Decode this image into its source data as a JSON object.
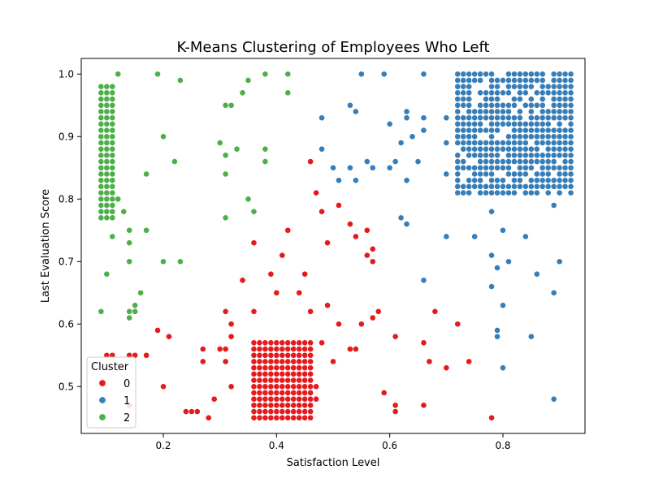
{
  "chart_data": {
    "type": "scatter",
    "title": "K-Means Clustering of Employees Who Left",
    "xlabel": "Satisfaction Level",
    "ylabel": "Last Evaluation Score",
    "xlim": [
      0.055,
      0.945
    ],
    "ylim": [
      0.425,
      1.025
    ],
    "xticks": [
      0.2,
      0.4,
      0.6,
      0.8
    ],
    "xtick_labels": [
      "0.2",
      "0.4",
      "0.6",
      "0.8"
    ],
    "yticks": [
      0.5,
      0.6,
      0.7,
      0.8,
      0.9,
      1.0
    ],
    "ytick_labels": [
      "0.5",
      "0.6",
      "0.7",
      "0.8",
      "0.9",
      "1.0"
    ],
    "grid": false,
    "legend": {
      "title": "Cluster",
      "placement": "lower-left",
      "entries": [
        {
          "label": "0",
          "color": "#e41a1c"
        },
        {
          "label": "1",
          "color": "#377eb8"
        },
        {
          "label": "2",
          "color": "#4daf4a"
        }
      ]
    },
    "blocks": [
      {
        "series": "0",
        "x_range": [
          0.36,
          0.46
        ],
        "y_range": [
          0.45,
          0.57
        ],
        "x_step": 0.01,
        "y_step": 0.01
      },
      {
        "series": "2",
        "x_range": [
          0.09,
          0.11
        ],
        "y_range": [
          0.77,
          0.98
        ],
        "x_step": 0.01,
        "y_step": 0.01
      },
      {
        "series": "1",
        "x_range": [
          0.72,
          0.92
        ],
        "y_range": [
          0.81,
          1.0
        ],
        "x_step": 0.01,
        "y_step": 0.01,
        "density": 0.82
      }
    ],
    "series": [
      {
        "name": "0",
        "color": "#e41a1c",
        "points": [
          [
            0.1,
            0.55
          ],
          [
            0.11,
            0.55
          ],
          [
            0.14,
            0.55
          ],
          [
            0.15,
            0.55
          ],
          [
            0.17,
            0.55
          ],
          [
            0.14,
            0.47
          ],
          [
            0.19,
            0.59
          ],
          [
            0.21,
            0.58
          ],
          [
            0.2,
            0.5
          ],
          [
            0.24,
            0.46
          ],
          [
            0.25,
            0.46
          ],
          [
            0.26,
            0.46
          ],
          [
            0.27,
            0.56
          ],
          [
            0.27,
            0.54
          ],
          [
            0.28,
            0.45
          ],
          [
            0.29,
            0.48
          ],
          [
            0.3,
            0.56
          ],
          [
            0.31,
            0.56
          ],
          [
            0.31,
            0.54
          ],
          [
            0.31,
            0.62
          ],
          [
            0.32,
            0.6
          ],
          [
            0.32,
            0.58
          ],
          [
            0.32,
            0.5
          ],
          [
            0.34,
            0.67
          ],
          [
            0.36,
            0.73
          ],
          [
            0.36,
            0.62
          ],
          [
            0.39,
            0.68
          ],
          [
            0.4,
            0.65
          ],
          [
            0.41,
            0.71
          ],
          [
            0.42,
            0.75
          ],
          [
            0.44,
            0.65
          ],
          [
            0.45,
            0.68
          ],
          [
            0.46,
            0.62
          ],
          [
            0.46,
            0.86
          ],
          [
            0.47,
            0.81
          ],
          [
            0.48,
            0.78
          ],
          [
            0.48,
            0.57
          ],
          [
            0.49,
            0.73
          ],
          [
            0.49,
            0.63
          ],
          [
            0.5,
            0.54
          ],
          [
            0.51,
            0.79
          ],
          [
            0.51,
            0.6
          ],
          [
            0.53,
            0.76
          ],
          [
            0.53,
            0.56
          ],
          [
            0.54,
            0.74
          ],
          [
            0.54,
            0.56
          ],
          [
            0.55,
            0.6
          ],
          [
            0.56,
            0.75
          ],
          [
            0.56,
            0.71
          ],
          [
            0.57,
            0.72
          ],
          [
            0.57,
            0.7
          ],
          [
            0.57,
            0.61
          ],
          [
            0.58,
            0.62
          ],
          [
            0.59,
            0.49
          ],
          [
            0.61,
            0.58
          ],
          [
            0.61,
            0.47
          ],
          [
            0.61,
            0.46
          ],
          [
            0.66,
            0.57
          ],
          [
            0.66,
            0.47
          ],
          [
            0.67,
            0.54
          ],
          [
            0.68,
            0.62
          ],
          [
            0.7,
            0.53
          ],
          [
            0.72,
            0.6
          ],
          [
            0.74,
            0.54
          ],
          [
            0.78,
            0.45
          ],
          [
            0.47,
            0.5
          ],
          [
            0.47,
            0.48
          ]
        ]
      },
      {
        "name": "1",
        "color": "#377eb8",
        "points": [
          [
            0.48,
            0.93
          ],
          [
            0.48,
            0.88
          ],
          [
            0.5,
            0.85
          ],
          [
            0.51,
            0.83
          ],
          [
            0.53,
            0.95
          ],
          [
            0.53,
            0.85
          ],
          [
            0.54,
            0.94
          ],
          [
            0.54,
            0.83
          ],
          [
            0.55,
            1.0
          ],
          [
            0.56,
            0.86
          ],
          [
            0.57,
            0.85
          ],
          [
            0.59,
            1.0
          ],
          [
            0.6,
            0.92
          ],
          [
            0.6,
            0.85
          ],
          [
            0.61,
            0.86
          ],
          [
            0.62,
            0.89
          ],
          [
            0.62,
            0.77
          ],
          [
            0.63,
            0.94
          ],
          [
            0.63,
            0.93
          ],
          [
            0.63,
            0.83
          ],
          [
            0.63,
            0.76
          ],
          [
            0.64,
            0.9
          ],
          [
            0.65,
            0.86
          ],
          [
            0.66,
            1.0
          ],
          [
            0.66,
            0.93
          ],
          [
            0.66,
            0.91
          ],
          [
            0.66,
            0.67
          ],
          [
            0.7,
            0.93
          ],
          [
            0.7,
            0.89
          ],
          [
            0.7,
            0.84
          ],
          [
            0.7,
            0.74
          ],
          [
            0.75,
            0.74
          ],
          [
            0.78,
            0.78
          ],
          [
            0.78,
            0.71
          ],
          [
            0.78,
            0.66
          ],
          [
            0.79,
            0.69
          ],
          [
            0.79,
            0.59
          ],
          [
            0.79,
            0.58
          ],
          [
            0.8,
            0.75
          ],
          [
            0.8,
            0.63
          ],
          [
            0.8,
            0.53
          ],
          [
            0.81,
            0.7
          ],
          [
            0.84,
            0.74
          ],
          [
            0.85,
            0.58
          ],
          [
            0.86,
            0.68
          ],
          [
            0.89,
            0.79
          ],
          [
            0.89,
            0.65
          ],
          [
            0.89,
            0.48
          ],
          [
            0.9,
            0.7
          ]
        ]
      },
      {
        "name": "2",
        "color": "#4daf4a",
        "points": [
          [
            0.09,
            0.62
          ],
          [
            0.1,
            0.68
          ],
          [
            0.11,
            0.74
          ],
          [
            0.12,
            0.8
          ],
          [
            0.12,
            1.0
          ],
          [
            0.13,
            0.78
          ],
          [
            0.14,
            0.75
          ],
          [
            0.14,
            0.73
          ],
          [
            0.14,
            0.7
          ],
          [
            0.14,
            0.62
          ],
          [
            0.14,
            0.61
          ],
          [
            0.15,
            0.63
          ],
          [
            0.15,
            0.62
          ],
          [
            0.16,
            0.65
          ],
          [
            0.17,
            0.84
          ],
          [
            0.17,
            0.75
          ],
          [
            0.19,
            1.0
          ],
          [
            0.2,
            0.9
          ],
          [
            0.2,
            0.7
          ],
          [
            0.22,
            0.86
          ],
          [
            0.23,
            0.99
          ],
          [
            0.23,
            0.7
          ],
          [
            0.3,
            0.89
          ],
          [
            0.31,
            0.95
          ],
          [
            0.31,
            0.87
          ],
          [
            0.31,
            0.84
          ],
          [
            0.31,
            0.77
          ],
          [
            0.32,
            0.95
          ],
          [
            0.33,
            0.88
          ],
          [
            0.34,
            0.97
          ],
          [
            0.35,
            0.99
          ],
          [
            0.35,
            0.8
          ],
          [
            0.36,
            0.78
          ],
          [
            0.38,
            1.0
          ],
          [
            0.38,
            0.88
          ],
          [
            0.38,
            0.86
          ],
          [
            0.42,
            1.0
          ],
          [
            0.42,
            0.97
          ]
        ]
      }
    ]
  }
}
